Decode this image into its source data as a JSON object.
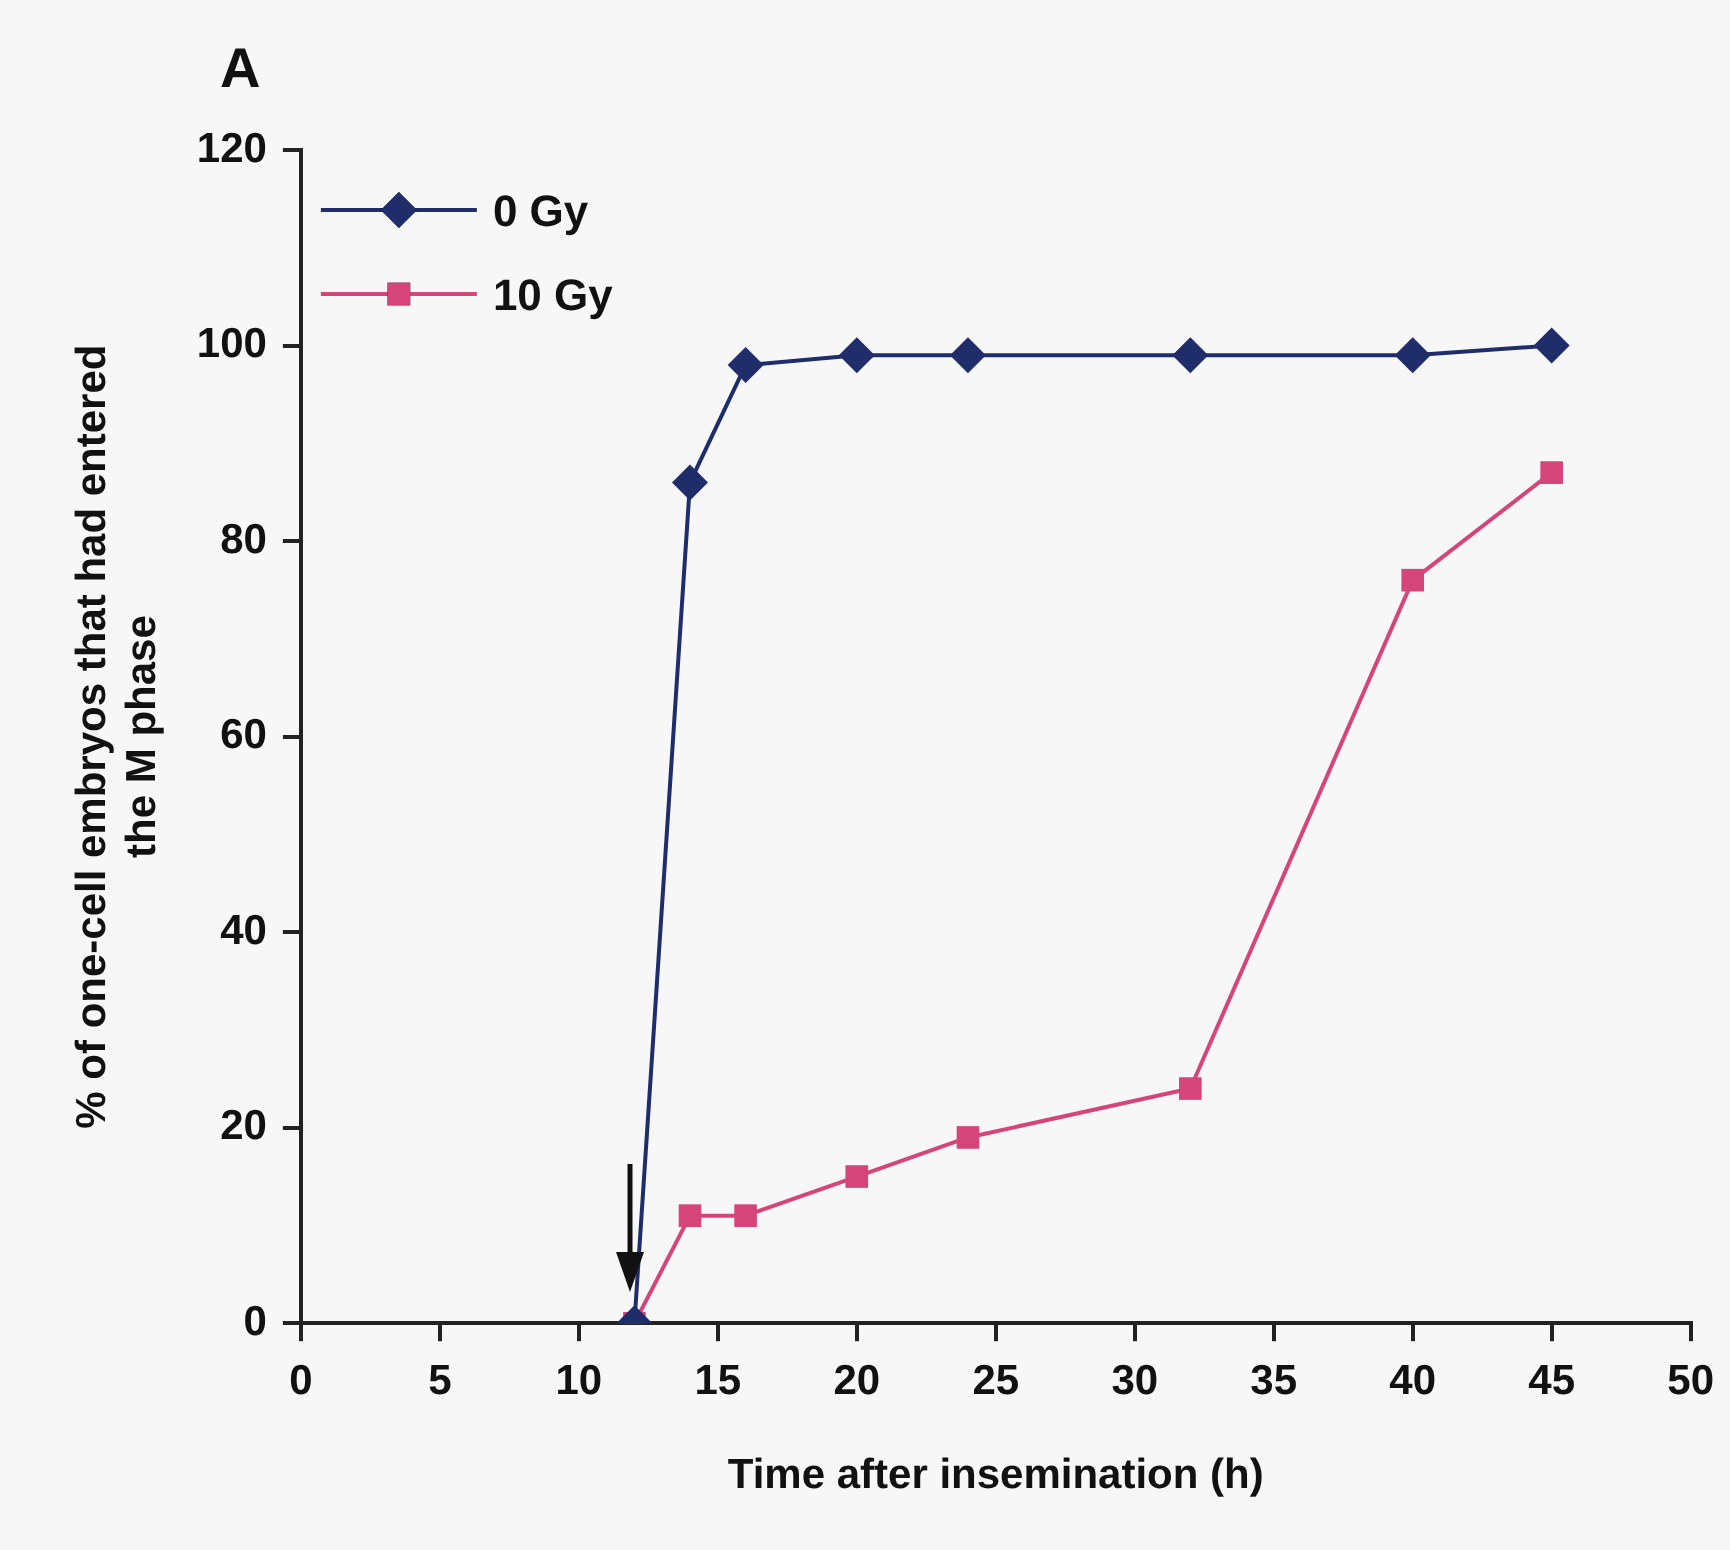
{
  "chart_data": {
    "type": "line",
    "xlabel": "Time after insemination (h)",
    "ylabel": "% of one-cell embryos that had entered the M phase",
    "annotations": [
      "A"
    ],
    "x": [
      12,
      14,
      16,
      20,
      24,
      32,
      40,
      45
    ],
    "series": [
      {
        "name": "0 Gy",
        "color": "#1f2d6b",
        "marker": "diamond",
        "values": [
          0,
          86,
          98,
          99,
          99,
          99,
          99,
          100
        ]
      },
      {
        "name": "10 Gy",
        "color": "#d6457a",
        "marker": "square",
        "values": [
          0,
          11,
          11,
          15,
          19,
          24,
          76,
          87
        ]
      }
    ],
    "xlim": [
      0,
      50
    ],
    "xticks": [
      0,
      5,
      10,
      15,
      20,
      25,
      30,
      35,
      40,
      45,
      50
    ],
    "ylim": [
      0,
      120
    ],
    "yticks": [
      0,
      20,
      40,
      60,
      80,
      100,
      120
    ],
    "grid": false,
    "legend": "top left"
  }
}
